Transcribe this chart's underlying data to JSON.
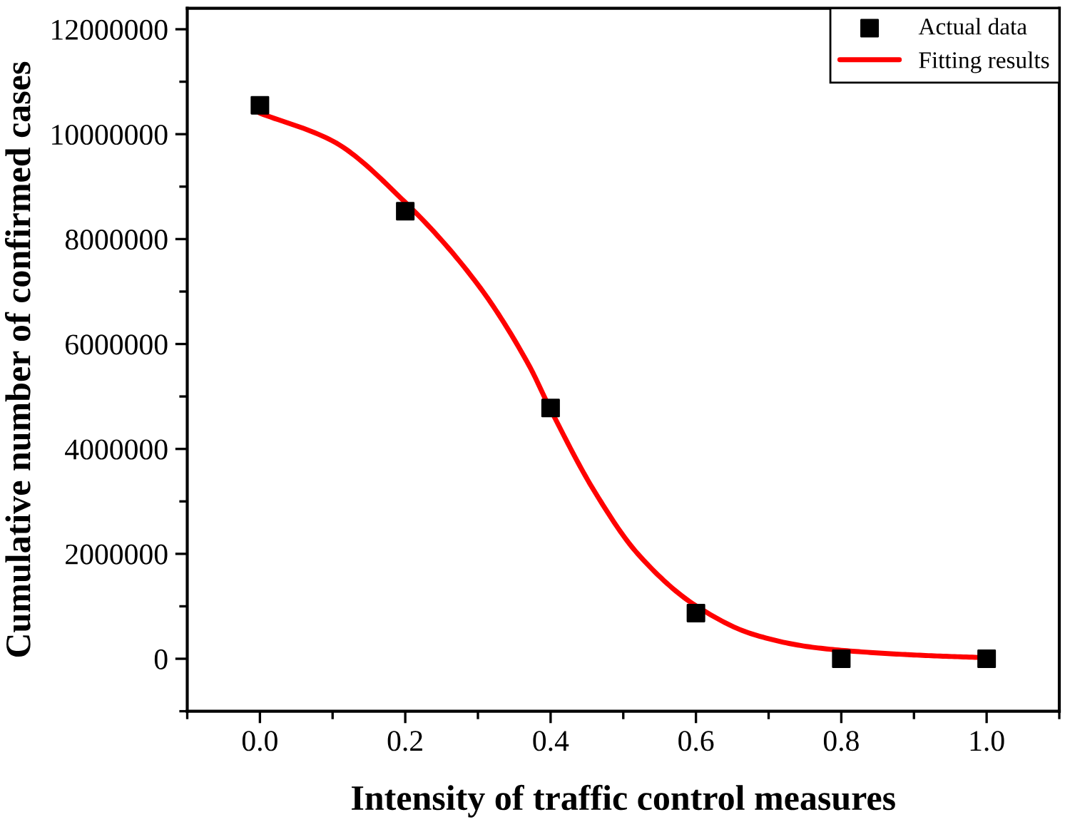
{
  "chart_data": {
    "type": "scatter",
    "xlabel": "Intensity of traffic control measures",
    "ylabel": "Cumulative number of confirmed cases",
    "xlim": [
      -0.1,
      1.1
    ],
    "xticks": [
      {
        "value": 0.0,
        "label": "0.0"
      },
      {
        "value": 0.2,
        "label": "0.2"
      },
      {
        "value": 0.4,
        "label": "0.4"
      },
      {
        "value": 0.6,
        "label": "0.6"
      },
      {
        "value": 0.8,
        "label": "0.8"
      },
      {
        "value": 1.0,
        "label": "1.0"
      }
    ],
    "ylim": [
      -1000000,
      12400000
    ],
    "yticks": [
      0,
      2000000,
      4000000,
      6000000,
      8000000,
      10000000,
      12000000
    ],
    "legend": "top right",
    "grid": false,
    "series": [
      {
        "name": "Actual data",
        "marker": "square",
        "color": "#000000",
        "x": [
          0.0,
          0.2,
          0.4,
          0.6,
          0.8,
          1.0
        ],
        "values": [
          10550000,
          8530000,
          4780000,
          870000,
          0,
          0
        ]
      },
      {
        "name": "Fitting results",
        "type": "line",
        "color": "#ff0000",
        "line_style": "solid",
        "x": [
          0.0,
          0.1,
          0.2,
          0.3,
          0.37,
          0.4,
          0.46,
          0.52,
          0.6,
          0.68,
          0.76,
          0.84,
          0.92,
          1.0
        ],
        "values": [
          10400000,
          9870000,
          8700000,
          7130000,
          5600000,
          4750000,
          3200000,
          2000000,
          1010000,
          460000,
          220000,
          120000,
          60000,
          20000
        ]
      }
    ]
  }
}
